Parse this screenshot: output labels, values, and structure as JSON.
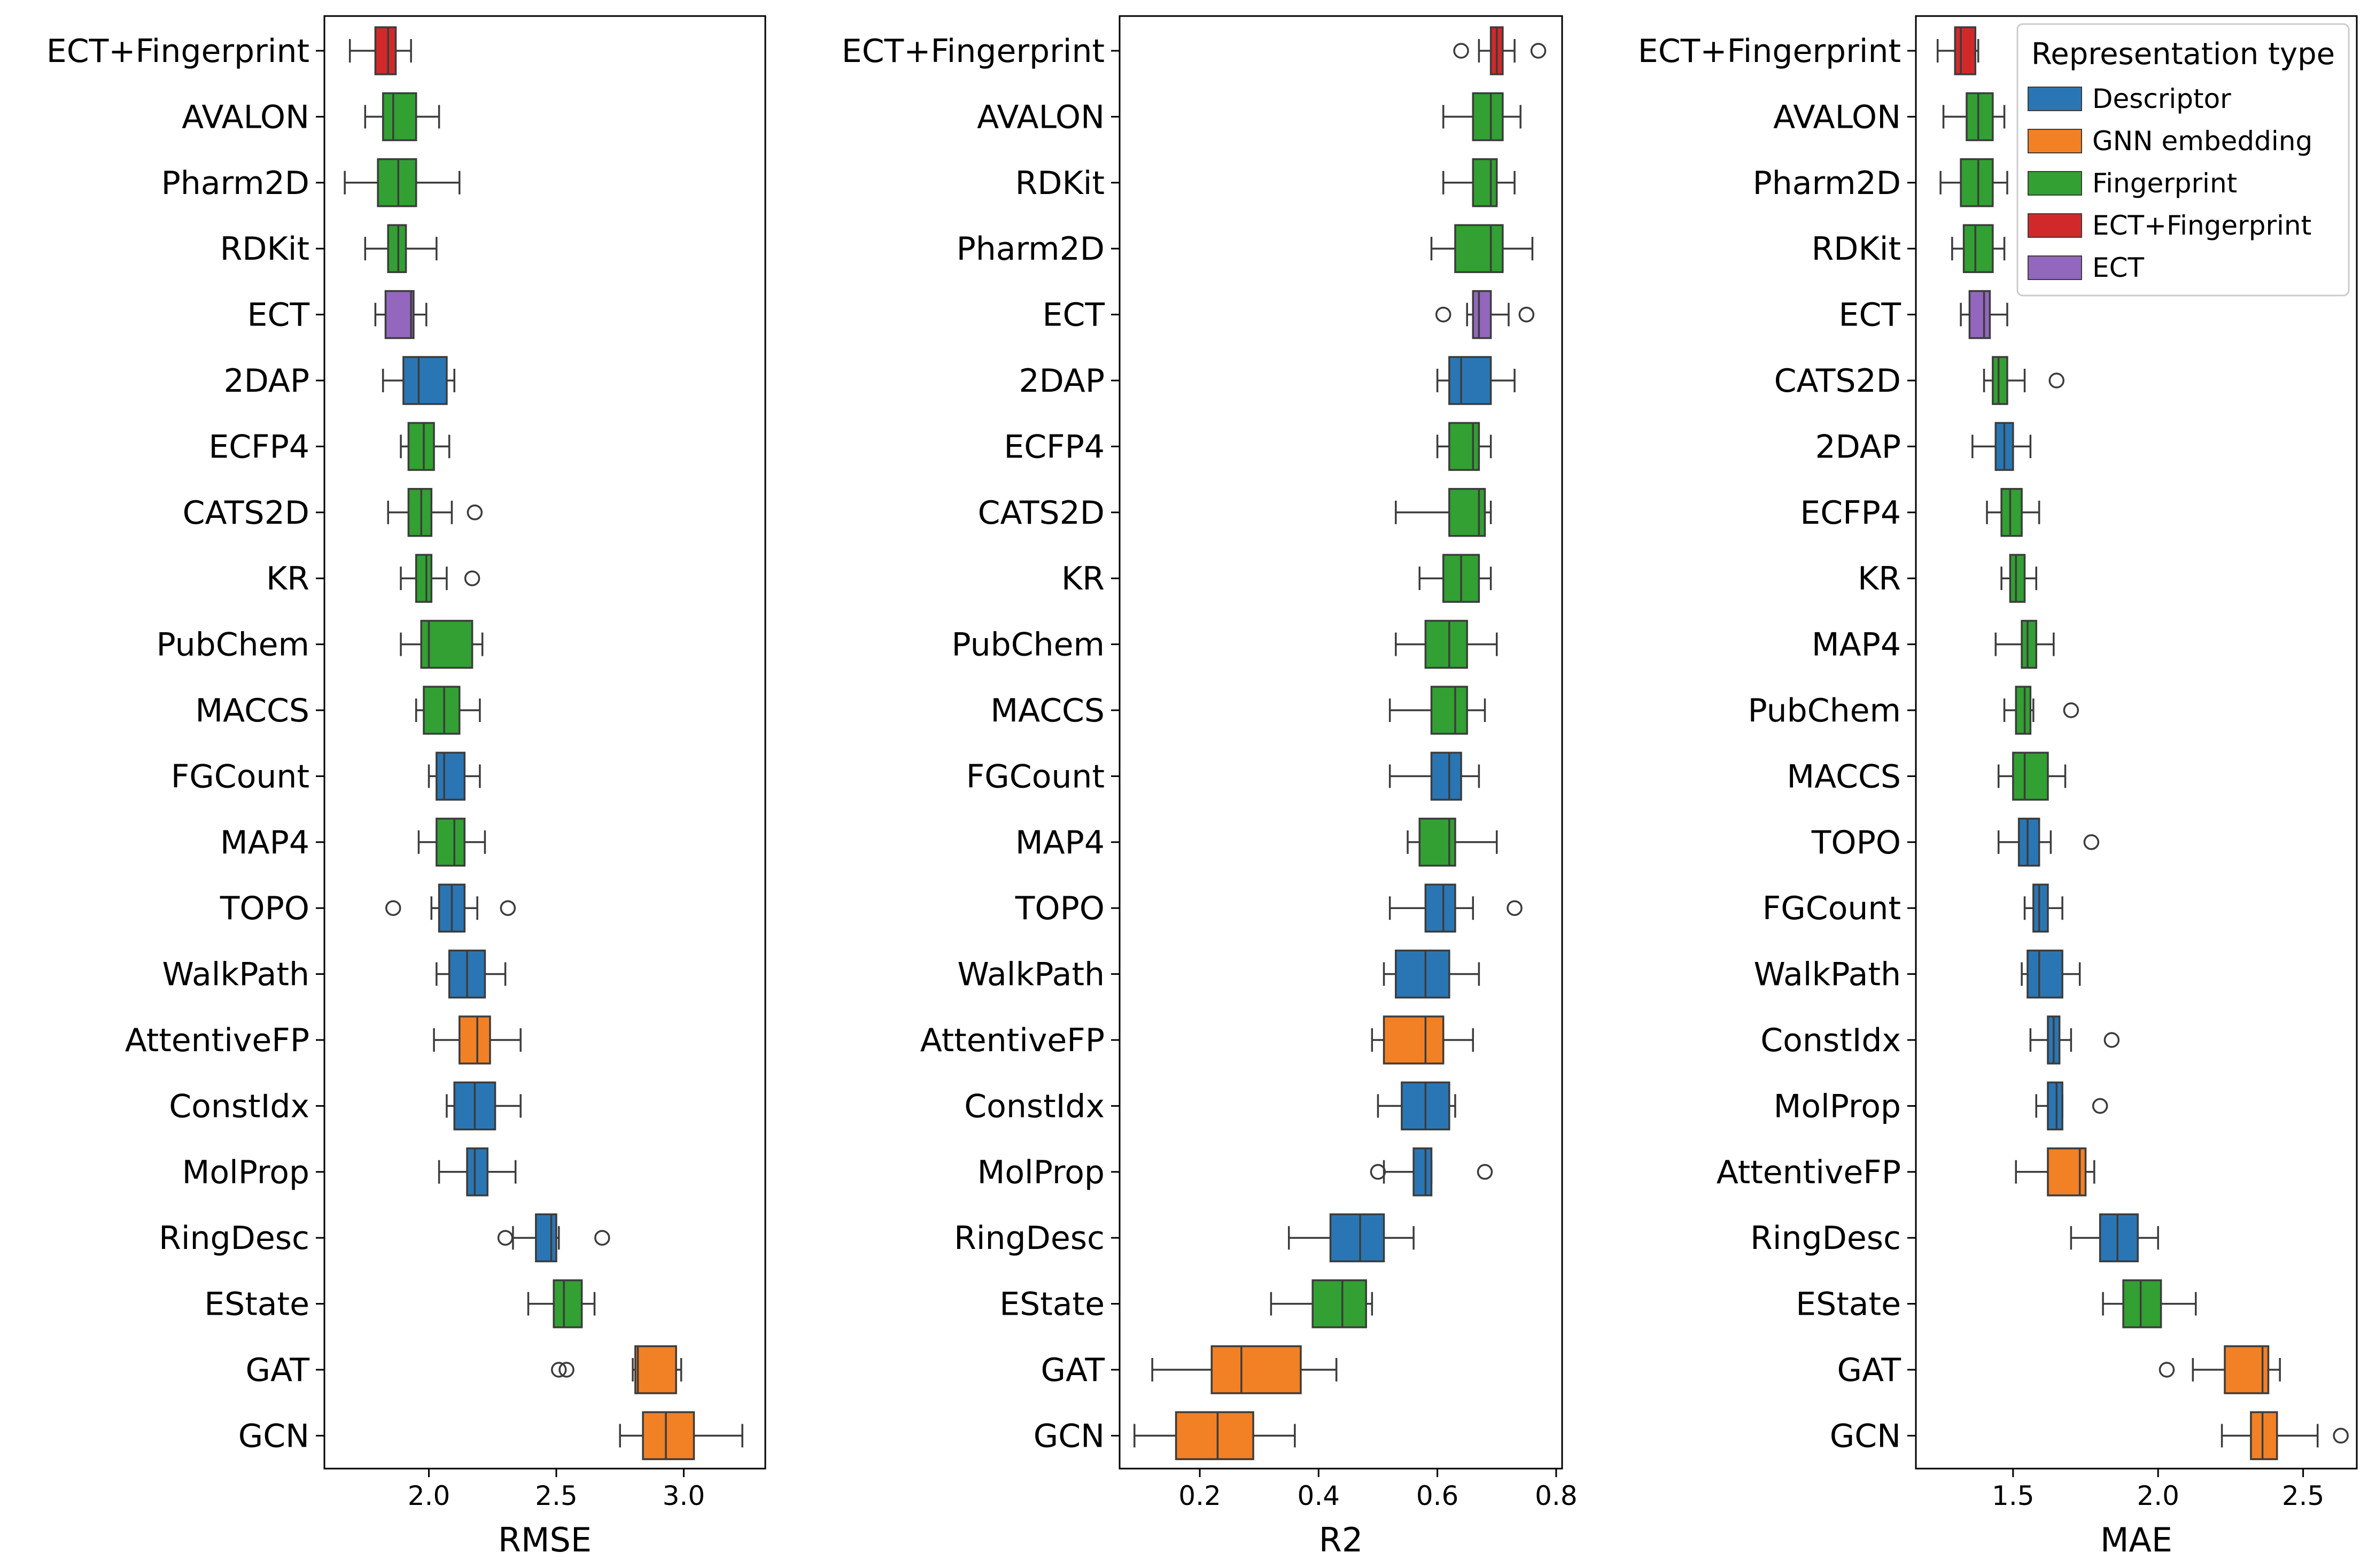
{
  "colors": {
    "Descriptor": "#2a76b4",
    "GNN embedding": "#f28025",
    "Fingerprint": "#32a032",
    "ECT+Fingerprint": "#d1292a",
    "ECT": "#9367be",
    "line": "#3c3c3c"
  },
  "legend": {
    "title": "Representation type",
    "entries": [
      "Descriptor",
      "GNN embedding",
      "Fingerprint",
      "ECT+Fingerprint",
      "ECT"
    ],
    "placement": "top-right of third panel"
  },
  "chart_data": [
    {
      "type": "boxplot",
      "orientation": "horizontal",
      "xlabel": "RMSE",
      "xlim": [
        1.59,
        3.32
      ],
      "xticks": [
        2.0,
        2.5,
        3.0
      ],
      "xtick_labels": [
        "2.0",
        "2.5",
        "3.0"
      ],
      "rows": [
        {
          "label": "ECT+Fingerprint",
          "group": "ECT+Fingerprint",
          "min": 1.69,
          "q1": 1.79,
          "median": 1.84,
          "q3": 1.87,
          "max": 1.93,
          "outliers": []
        },
        {
          "label": "AVALON",
          "group": "Fingerprint",
          "min": 1.75,
          "q1": 1.82,
          "median": 1.86,
          "q3": 1.95,
          "max": 2.04,
          "outliers": []
        },
        {
          "label": "Pharm2D",
          "group": "Fingerprint",
          "min": 1.67,
          "q1": 1.8,
          "median": 1.88,
          "q3": 1.95,
          "max": 2.12,
          "outliers": []
        },
        {
          "label": "RDKit",
          "group": "Fingerprint",
          "min": 1.75,
          "q1": 1.84,
          "median": 1.88,
          "q3": 1.91,
          "max": 2.03,
          "outliers": []
        },
        {
          "label": "ECT",
          "group": "ECT",
          "min": 1.79,
          "q1": 1.83,
          "median": 1.93,
          "q3": 1.94,
          "max": 1.99,
          "outliers": []
        },
        {
          "label": "2DAP",
          "group": "Descriptor",
          "min": 1.82,
          "q1": 1.9,
          "median": 1.96,
          "q3": 2.07,
          "max": 2.1,
          "outliers": []
        },
        {
          "label": "ECFP4",
          "group": "Fingerprint",
          "min": 1.89,
          "q1": 1.92,
          "median": 1.98,
          "q3": 2.02,
          "max": 2.08,
          "outliers": []
        },
        {
          "label": "CATS2D",
          "group": "Fingerprint",
          "min": 1.84,
          "q1": 1.92,
          "median": 1.97,
          "q3": 2.01,
          "max": 2.09,
          "outliers": [
            2.18
          ]
        },
        {
          "label": "KR",
          "group": "Fingerprint",
          "min": 1.89,
          "q1": 1.95,
          "median": 1.99,
          "q3": 2.01,
          "max": 2.07,
          "outliers": [
            2.17
          ]
        },
        {
          "label": "PubChem",
          "group": "Fingerprint",
          "min": 1.89,
          "q1": 1.97,
          "median": 2.0,
          "q3": 2.17,
          "max": 2.21,
          "outliers": []
        },
        {
          "label": "MACCS",
          "group": "Fingerprint",
          "min": 1.95,
          "q1": 1.98,
          "median": 2.06,
          "q3": 2.12,
          "max": 2.2,
          "outliers": []
        },
        {
          "label": "FGCount",
          "group": "Descriptor",
          "min": 2.0,
          "q1": 2.03,
          "median": 2.06,
          "q3": 2.14,
          "max": 2.2,
          "outliers": []
        },
        {
          "label": "MAP4",
          "group": "Fingerprint",
          "min": 1.96,
          "q1": 2.03,
          "median": 2.1,
          "q3": 2.14,
          "max": 2.22,
          "outliers": []
        },
        {
          "label": "TOPO",
          "group": "Descriptor",
          "min": 2.01,
          "q1": 2.04,
          "median": 2.09,
          "q3": 2.14,
          "max": 2.19,
          "outliers": [
            1.86,
            2.31
          ]
        },
        {
          "label": "WalkPath",
          "group": "Descriptor",
          "min": 2.03,
          "q1": 2.08,
          "median": 2.15,
          "q3": 2.22,
          "max": 2.3,
          "outliers": []
        },
        {
          "label": "AttentiveFP",
          "group": "GNN embedding",
          "min": 2.02,
          "q1": 2.12,
          "median": 2.19,
          "q3": 2.24,
          "max": 2.36,
          "outliers": []
        },
        {
          "label": "ConstIdx",
          "group": "Descriptor",
          "min": 2.07,
          "q1": 2.1,
          "median": 2.18,
          "q3": 2.26,
          "max": 2.36,
          "outliers": []
        },
        {
          "label": "MolProp",
          "group": "Descriptor",
          "min": 2.04,
          "q1": 2.15,
          "median": 2.18,
          "q3": 2.23,
          "max": 2.34,
          "outliers": []
        },
        {
          "label": "RingDesc",
          "group": "Descriptor",
          "min": 2.33,
          "q1": 2.42,
          "median": 2.48,
          "q3": 2.5,
          "max": 2.51,
          "outliers": [
            2.3,
            2.68
          ]
        },
        {
          "label": "EState",
          "group": "Fingerprint",
          "min": 2.39,
          "q1": 2.49,
          "median": 2.53,
          "q3": 2.6,
          "max": 2.65,
          "outliers": []
        },
        {
          "label": "GAT",
          "group": "GNN embedding",
          "min": 2.8,
          "q1": 2.81,
          "median": 2.82,
          "q3": 2.97,
          "max": 2.99,
          "outliers": [
            2.51,
            2.54
          ]
        },
        {
          "label": "GCN",
          "group": "GNN embedding",
          "min": 2.75,
          "q1": 2.84,
          "median": 2.93,
          "q3": 3.04,
          "max": 3.23,
          "outliers": []
        }
      ]
    },
    {
      "type": "boxplot",
      "orientation": "horizontal",
      "xlabel": "R2",
      "xlim": [
        0.065,
        0.81
      ],
      "xticks": [
        0.2,
        0.4,
        0.6,
        0.8
      ],
      "xtick_labels": [
        "0.2",
        "0.4",
        "0.6",
        "0.8"
      ],
      "rows": [
        {
          "label": "ECT+Fingerprint",
          "group": "ECT+Fingerprint",
          "min": 0.67,
          "q1": 0.69,
          "median": 0.7,
          "q3": 0.71,
          "max": 0.73,
          "outliers": [
            0.64,
            0.77
          ]
        },
        {
          "label": "AVALON",
          "group": "Fingerprint",
          "min": 0.61,
          "q1": 0.66,
          "median": 0.69,
          "q3": 0.71,
          "max": 0.74,
          "outliers": []
        },
        {
          "label": "RDKit",
          "group": "Fingerprint",
          "min": 0.61,
          "q1": 0.66,
          "median": 0.69,
          "q3": 0.7,
          "max": 0.73,
          "outliers": []
        },
        {
          "label": "Pharm2D",
          "group": "Fingerprint",
          "min": 0.59,
          "q1": 0.63,
          "median": 0.69,
          "q3": 0.71,
          "max": 0.76,
          "outliers": []
        },
        {
          "label": "ECT",
          "group": "ECT",
          "min": 0.65,
          "q1": 0.66,
          "median": 0.67,
          "q3": 0.69,
          "max": 0.72,
          "outliers": [
            0.61,
            0.75
          ]
        },
        {
          "label": "2DAP",
          "group": "Descriptor",
          "min": 0.6,
          "q1": 0.62,
          "median": 0.64,
          "q3": 0.69,
          "max": 0.73,
          "outliers": []
        },
        {
          "label": "ECFP4",
          "group": "Fingerprint",
          "min": 0.6,
          "q1": 0.62,
          "median": 0.66,
          "q3": 0.67,
          "max": 0.69,
          "outliers": []
        },
        {
          "label": "CATS2D",
          "group": "Fingerprint",
          "min": 0.53,
          "q1": 0.62,
          "median": 0.67,
          "q3": 0.68,
          "max": 0.69,
          "outliers": []
        },
        {
          "label": "KR",
          "group": "Fingerprint",
          "min": 0.57,
          "q1": 0.61,
          "median": 0.64,
          "q3": 0.67,
          "max": 0.69,
          "outliers": []
        },
        {
          "label": "PubChem",
          "group": "Fingerprint",
          "min": 0.53,
          "q1": 0.58,
          "median": 0.62,
          "q3": 0.65,
          "max": 0.7,
          "outliers": []
        },
        {
          "label": "MACCS",
          "group": "Fingerprint",
          "min": 0.52,
          "q1": 0.59,
          "median": 0.63,
          "q3": 0.65,
          "max": 0.68,
          "outliers": []
        },
        {
          "label": "FGCount",
          "group": "Descriptor",
          "min": 0.52,
          "q1": 0.59,
          "median": 0.62,
          "q3": 0.64,
          "max": 0.67,
          "outliers": []
        },
        {
          "label": "MAP4",
          "group": "Fingerprint",
          "min": 0.55,
          "q1": 0.57,
          "median": 0.62,
          "q3": 0.63,
          "max": 0.7,
          "outliers": []
        },
        {
          "label": "TOPO",
          "group": "Descriptor",
          "min": 0.52,
          "q1": 0.58,
          "median": 0.61,
          "q3": 0.63,
          "max": 0.66,
          "outliers": [
            0.73
          ]
        },
        {
          "label": "WalkPath",
          "group": "Descriptor",
          "min": 0.51,
          "q1": 0.53,
          "median": 0.58,
          "q3": 0.62,
          "max": 0.67,
          "outliers": []
        },
        {
          "label": "AttentiveFP",
          "group": "GNN embedding",
          "min": 0.49,
          "q1": 0.51,
          "median": 0.58,
          "q3": 0.61,
          "max": 0.66,
          "outliers": []
        },
        {
          "label": "ConstIdx",
          "group": "Descriptor",
          "min": 0.5,
          "q1": 0.54,
          "median": 0.58,
          "q3": 0.62,
          "max": 0.63,
          "outliers": []
        },
        {
          "label": "MolProp",
          "group": "Descriptor",
          "min": 0.51,
          "q1": 0.56,
          "median": 0.58,
          "q3": 0.59,
          "max": 0.59,
          "outliers": [
            0.5,
            0.68
          ]
        },
        {
          "label": "RingDesc",
          "group": "Descriptor",
          "min": 0.35,
          "q1": 0.42,
          "median": 0.47,
          "q3": 0.51,
          "max": 0.56,
          "outliers": []
        },
        {
          "label": "EState",
          "group": "Fingerprint",
          "min": 0.32,
          "q1": 0.39,
          "median": 0.44,
          "q3": 0.48,
          "max": 0.49,
          "outliers": []
        },
        {
          "label": "GAT",
          "group": "GNN embedding",
          "min": 0.12,
          "q1": 0.22,
          "median": 0.27,
          "q3": 0.37,
          "max": 0.43,
          "outliers": []
        },
        {
          "label": "GCN",
          "group": "GNN embedding",
          "min": 0.09,
          "q1": 0.16,
          "median": 0.23,
          "q3": 0.29,
          "max": 0.36,
          "outliers": []
        }
      ]
    },
    {
      "type": "boxplot",
      "orientation": "horizontal",
      "xlabel": "MAE",
      "xlim": [
        1.165,
        2.685
      ],
      "xticks": [
        1.5,
        2.0,
        2.5
      ],
      "xtick_labels": [
        "1.5",
        "2.0",
        "2.5"
      ],
      "rows": [
        {
          "label": "ECT+Fingerprint",
          "group": "ECT+Fingerprint",
          "min": 1.24,
          "q1": 1.3,
          "median": 1.32,
          "q3": 1.37,
          "max": 1.38,
          "outliers": []
        },
        {
          "label": "AVALON",
          "group": "Fingerprint",
          "min": 1.26,
          "q1": 1.34,
          "median": 1.38,
          "q3": 1.43,
          "max": 1.47,
          "outliers": []
        },
        {
          "label": "Pharm2D",
          "group": "Fingerprint",
          "min": 1.25,
          "q1": 1.32,
          "median": 1.38,
          "q3": 1.43,
          "max": 1.48,
          "outliers": []
        },
        {
          "label": "RDKit",
          "group": "Fingerprint",
          "min": 1.29,
          "q1": 1.33,
          "median": 1.37,
          "q3": 1.43,
          "max": 1.47,
          "outliers": []
        },
        {
          "label": "ECT",
          "group": "ECT",
          "min": 1.32,
          "q1": 1.35,
          "median": 1.4,
          "q3": 1.42,
          "max": 1.48,
          "outliers": []
        },
        {
          "label": "CATS2D",
          "group": "Fingerprint",
          "min": 1.4,
          "q1": 1.43,
          "median": 1.45,
          "q3": 1.48,
          "max": 1.54,
          "outliers": [
            1.65
          ]
        },
        {
          "label": "2DAP",
          "group": "Descriptor",
          "min": 1.36,
          "q1": 1.44,
          "median": 1.47,
          "q3": 1.5,
          "max": 1.56,
          "outliers": []
        },
        {
          "label": "ECFP4",
          "group": "Fingerprint",
          "min": 1.41,
          "q1": 1.46,
          "median": 1.49,
          "q3": 1.53,
          "max": 1.59,
          "outliers": []
        },
        {
          "label": "KR",
          "group": "Fingerprint",
          "min": 1.46,
          "q1": 1.49,
          "median": 1.51,
          "q3": 1.54,
          "max": 1.58,
          "outliers": []
        },
        {
          "label": "MAP4",
          "group": "Fingerprint",
          "min": 1.44,
          "q1": 1.53,
          "median": 1.55,
          "q3": 1.58,
          "max": 1.64,
          "outliers": []
        },
        {
          "label": "PubChem",
          "group": "Fingerprint",
          "min": 1.47,
          "q1": 1.51,
          "median": 1.54,
          "q3": 1.56,
          "max": 1.57,
          "outliers": [
            1.7
          ]
        },
        {
          "label": "MACCS",
          "group": "Fingerprint",
          "min": 1.45,
          "q1": 1.5,
          "median": 1.54,
          "q3": 1.62,
          "max": 1.68,
          "outliers": []
        },
        {
          "label": "TOPO",
          "group": "Descriptor",
          "min": 1.45,
          "q1": 1.52,
          "median": 1.55,
          "q3": 1.59,
          "max": 1.63,
          "outliers": [
            1.77
          ]
        },
        {
          "label": "FGCount",
          "group": "Descriptor",
          "min": 1.54,
          "q1": 1.57,
          "median": 1.59,
          "q3": 1.62,
          "max": 1.67,
          "outliers": []
        },
        {
          "label": "WalkPath",
          "group": "Descriptor",
          "min": 1.53,
          "q1": 1.55,
          "median": 1.59,
          "q3": 1.67,
          "max": 1.73,
          "outliers": []
        },
        {
          "label": "ConstIdx",
          "group": "Descriptor",
          "min": 1.56,
          "q1": 1.62,
          "median": 1.64,
          "q3": 1.66,
          "max": 1.7,
          "outliers": [
            1.84
          ]
        },
        {
          "label": "MolProp",
          "group": "Descriptor",
          "min": 1.58,
          "q1": 1.62,
          "median": 1.65,
          "q3": 1.67,
          "max": 1.67,
          "outliers": [
            1.8
          ]
        },
        {
          "label": "AttentiveFP",
          "group": "GNN embedding",
          "min": 1.51,
          "q1": 1.62,
          "median": 1.73,
          "q3": 1.75,
          "max": 1.78,
          "outliers": []
        },
        {
          "label": "RingDesc",
          "group": "Descriptor",
          "min": 1.7,
          "q1": 1.8,
          "median": 1.86,
          "q3": 1.93,
          "max": 2.0,
          "outliers": []
        },
        {
          "label": "EState",
          "group": "Fingerprint",
          "min": 1.81,
          "q1": 1.88,
          "median": 1.94,
          "q3": 2.01,
          "max": 2.13,
          "outliers": []
        },
        {
          "label": "GAT",
          "group": "GNN embedding",
          "min": 2.12,
          "q1": 2.23,
          "median": 2.36,
          "q3": 2.38,
          "max": 2.42,
          "outliers": [
            2.03
          ]
        },
        {
          "label": "GCN",
          "group": "GNN embedding",
          "min": 2.22,
          "q1": 2.32,
          "median": 2.36,
          "q3": 2.41,
          "max": 2.55,
          "outliers": [
            2.63
          ]
        }
      ]
    }
  ]
}
